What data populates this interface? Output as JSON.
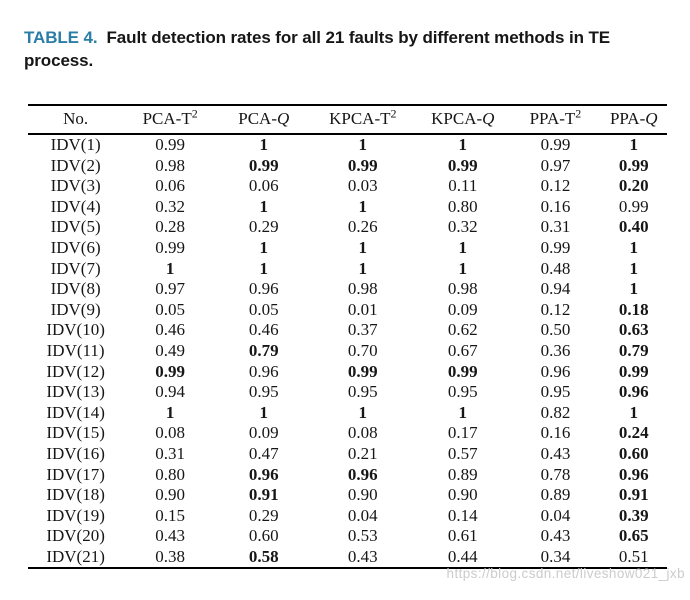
{
  "caption": {
    "tag": "TABLE 4.",
    "text": "Fault detection rates for all 21 faults by different methods in TE process."
  },
  "colors": {
    "caption_tag": "#2b7da6",
    "text": "#161616",
    "rule": "#000000",
    "watermark": "#cccccc"
  },
  "table": {
    "columns": [
      {
        "key": "no",
        "label": "No."
      },
      {
        "key": "pca-t2",
        "label": "PCA-T",
        "sup": "2"
      },
      {
        "key": "pca-q",
        "label": "PCA-",
        "italic": "Q"
      },
      {
        "key": "kpca-t2",
        "label": "KPCA-T",
        "sup": "2"
      },
      {
        "key": "kpca-q",
        "label": "KPCA-",
        "italic": "Q"
      },
      {
        "key": "ppa-t2",
        "label": "PPA-T",
        "sup": "2"
      },
      {
        "key": "ppa-q",
        "label": "PPA-",
        "italic": "Q"
      }
    ],
    "rows": [
      {
        "no": "IDV(1)",
        "values": [
          "0.99",
          "1",
          "1",
          "1",
          "0.99",
          "1"
        ],
        "bold": [
          false,
          true,
          true,
          true,
          false,
          true
        ]
      },
      {
        "no": "IDV(2)",
        "values": [
          "0.98",
          "0.99",
          "0.99",
          "0.99",
          "0.97",
          "0.99"
        ],
        "bold": [
          false,
          true,
          true,
          true,
          false,
          true
        ]
      },
      {
        "no": "IDV(3)",
        "values": [
          "0.06",
          "0.06",
          "0.03",
          "0.11",
          "0.12",
          "0.20"
        ],
        "bold": [
          false,
          false,
          false,
          false,
          false,
          true
        ]
      },
      {
        "no": "IDV(4)",
        "values": [
          "0.32",
          "1",
          "1",
          "0.80",
          "0.16",
          "0.99"
        ],
        "bold": [
          false,
          true,
          true,
          false,
          false,
          false
        ]
      },
      {
        "no": "IDV(5)",
        "values": [
          "0.28",
          "0.29",
          "0.26",
          "0.32",
          "0.31",
          "0.40"
        ],
        "bold": [
          false,
          false,
          false,
          false,
          false,
          true
        ]
      },
      {
        "no": "IDV(6)",
        "values": [
          "0.99",
          "1",
          "1",
          "1",
          "0.99",
          "1"
        ],
        "bold": [
          false,
          true,
          true,
          true,
          false,
          true
        ]
      },
      {
        "no": "IDV(7)",
        "values": [
          "1",
          "1",
          "1",
          "1",
          "0.48",
          "1"
        ],
        "bold": [
          true,
          true,
          true,
          true,
          false,
          true
        ]
      },
      {
        "no": "IDV(8)",
        "values": [
          "0.97",
          "0.96",
          "0.98",
          "0.98",
          "0.94",
          "1"
        ],
        "bold": [
          false,
          false,
          false,
          false,
          false,
          true
        ]
      },
      {
        "no": "IDV(9)",
        "values": [
          "0.05",
          "0.05",
          "0.01",
          "0.09",
          "0.12",
          "0.18"
        ],
        "bold": [
          false,
          false,
          false,
          false,
          false,
          true
        ]
      },
      {
        "no": "IDV(10)",
        "values": [
          "0.46",
          "0.46",
          "0.37",
          "0.62",
          "0.50",
          "0.63"
        ],
        "bold": [
          false,
          false,
          false,
          false,
          false,
          true
        ]
      },
      {
        "no": "IDV(11)",
        "values": [
          "0.49",
          "0.79",
          "0.70",
          "0.67",
          "0.36",
          "0.79"
        ],
        "bold": [
          false,
          true,
          false,
          false,
          false,
          true
        ]
      },
      {
        "no": "IDV(12)",
        "values": [
          "0.99",
          "0.96",
          "0.99",
          "0.99",
          "0.96",
          "0.99"
        ],
        "bold": [
          true,
          false,
          true,
          true,
          false,
          true
        ]
      },
      {
        "no": "IDV(13)",
        "values": [
          "0.94",
          "0.95",
          "0.95",
          "0.95",
          "0.95",
          "0.96"
        ],
        "bold": [
          false,
          false,
          false,
          false,
          false,
          true
        ]
      },
      {
        "no": "IDV(14)",
        "values": [
          "1",
          "1",
          "1",
          "1",
          "0.82",
          "1"
        ],
        "bold": [
          true,
          true,
          true,
          true,
          false,
          true
        ]
      },
      {
        "no": "IDV(15)",
        "values": [
          "0.08",
          "0.09",
          "0.08",
          "0.17",
          "0.16",
          "0.24"
        ],
        "bold": [
          false,
          false,
          false,
          false,
          false,
          true
        ]
      },
      {
        "no": "IDV(16)",
        "values": [
          "0.31",
          "0.47",
          "0.21",
          "0.57",
          "0.43",
          "0.60"
        ],
        "bold": [
          false,
          false,
          false,
          false,
          false,
          true
        ]
      },
      {
        "no": "IDV(17)",
        "values": [
          "0.80",
          "0.96",
          "0.96",
          "0.89",
          "0.78",
          "0.96"
        ],
        "bold": [
          false,
          true,
          true,
          false,
          false,
          true
        ]
      },
      {
        "no": "IDV(18)",
        "values": [
          "0.90",
          "0.91",
          "0.90",
          "0.90",
          "0.89",
          "0.91"
        ],
        "bold": [
          false,
          true,
          false,
          false,
          false,
          true
        ]
      },
      {
        "no": "IDV(19)",
        "values": [
          "0.15",
          "0.29",
          "0.04",
          "0.14",
          "0.04",
          "0.39"
        ],
        "bold": [
          false,
          false,
          false,
          false,
          false,
          true
        ]
      },
      {
        "no": "IDV(20)",
        "values": [
          "0.43",
          "0.60",
          "0.53",
          "0.61",
          "0.43",
          "0.65"
        ],
        "bold": [
          false,
          false,
          false,
          false,
          false,
          true
        ]
      },
      {
        "no": "IDV(21)",
        "values": [
          "0.38",
          "0.58",
          "0.43",
          "0.44",
          "0.34",
          "0.51"
        ],
        "bold": [
          false,
          true,
          false,
          false,
          false,
          false
        ]
      }
    ],
    "col_widths": [
      "14.9%",
      "14.7%",
      "14.6%",
      "16.4%",
      "14.9%",
      "14.1%",
      "10.4%"
    ]
  },
  "watermark": "https://blog.csdn.net/liveshow021_jxb"
}
